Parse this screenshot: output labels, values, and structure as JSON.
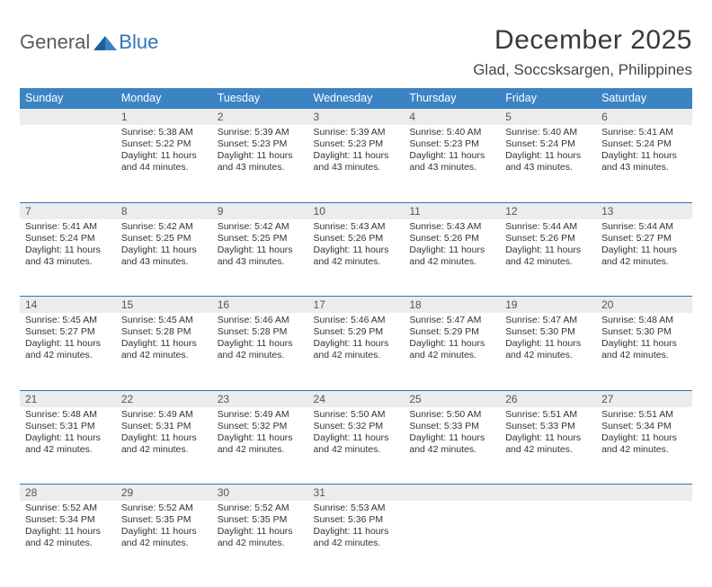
{
  "brand": {
    "part1": "General",
    "part2": "Blue"
  },
  "title": "December 2025",
  "location": "Glad, Soccsksargen, Philippines",
  "day_headers": [
    "Sunday",
    "Monday",
    "Tuesday",
    "Wednesday",
    "Thursday",
    "Friday",
    "Saturday"
  ],
  "colors": {
    "header_bg": "#3b84c4",
    "header_text": "#ffffff",
    "row_divider": "#2f78b7",
    "daynum_bg": "#ececec",
    "body_text": "#333333",
    "title_text": "#3a3a3a"
  },
  "typography": {
    "title_fontsize": 30,
    "location_fontsize": 17,
    "header_fontsize": 12.5,
    "cell_fontsize": 10.5,
    "daynum_fontsize": 12
  },
  "weeks": [
    {
      "nums": [
        "",
        "1",
        "2",
        "3",
        "4",
        "5",
        "6"
      ],
      "cells": [
        {
          "sunrise": "",
          "sunset": "",
          "daylight": ""
        },
        {
          "sunrise": "Sunrise: 5:38 AM",
          "sunset": "Sunset: 5:22 PM",
          "daylight": "Daylight: 11 hours and 44 minutes."
        },
        {
          "sunrise": "Sunrise: 5:39 AM",
          "sunset": "Sunset: 5:23 PM",
          "daylight": "Daylight: 11 hours and 43 minutes."
        },
        {
          "sunrise": "Sunrise: 5:39 AM",
          "sunset": "Sunset: 5:23 PM",
          "daylight": "Daylight: 11 hours and 43 minutes."
        },
        {
          "sunrise": "Sunrise: 5:40 AM",
          "sunset": "Sunset: 5:23 PM",
          "daylight": "Daylight: 11 hours and 43 minutes."
        },
        {
          "sunrise": "Sunrise: 5:40 AM",
          "sunset": "Sunset: 5:24 PM",
          "daylight": "Daylight: 11 hours and 43 minutes."
        },
        {
          "sunrise": "Sunrise: 5:41 AM",
          "sunset": "Sunset: 5:24 PM",
          "daylight": "Daylight: 11 hours and 43 minutes."
        }
      ]
    },
    {
      "nums": [
        "7",
        "8",
        "9",
        "10",
        "11",
        "12",
        "13"
      ],
      "cells": [
        {
          "sunrise": "Sunrise: 5:41 AM",
          "sunset": "Sunset: 5:24 PM",
          "daylight": "Daylight: 11 hours and 43 minutes."
        },
        {
          "sunrise": "Sunrise: 5:42 AM",
          "sunset": "Sunset: 5:25 PM",
          "daylight": "Daylight: 11 hours and 43 minutes."
        },
        {
          "sunrise": "Sunrise: 5:42 AM",
          "sunset": "Sunset: 5:25 PM",
          "daylight": "Daylight: 11 hours and 43 minutes."
        },
        {
          "sunrise": "Sunrise: 5:43 AM",
          "sunset": "Sunset: 5:26 PM",
          "daylight": "Daylight: 11 hours and 42 minutes."
        },
        {
          "sunrise": "Sunrise: 5:43 AM",
          "sunset": "Sunset: 5:26 PM",
          "daylight": "Daylight: 11 hours and 42 minutes."
        },
        {
          "sunrise": "Sunrise: 5:44 AM",
          "sunset": "Sunset: 5:26 PM",
          "daylight": "Daylight: 11 hours and 42 minutes."
        },
        {
          "sunrise": "Sunrise: 5:44 AM",
          "sunset": "Sunset: 5:27 PM",
          "daylight": "Daylight: 11 hours and 42 minutes."
        }
      ]
    },
    {
      "nums": [
        "14",
        "15",
        "16",
        "17",
        "18",
        "19",
        "20"
      ],
      "cells": [
        {
          "sunrise": "Sunrise: 5:45 AM",
          "sunset": "Sunset: 5:27 PM",
          "daylight": "Daylight: 11 hours and 42 minutes."
        },
        {
          "sunrise": "Sunrise: 5:45 AM",
          "sunset": "Sunset: 5:28 PM",
          "daylight": "Daylight: 11 hours and 42 minutes."
        },
        {
          "sunrise": "Sunrise: 5:46 AM",
          "sunset": "Sunset: 5:28 PM",
          "daylight": "Daylight: 11 hours and 42 minutes."
        },
        {
          "sunrise": "Sunrise: 5:46 AM",
          "sunset": "Sunset: 5:29 PM",
          "daylight": "Daylight: 11 hours and 42 minutes."
        },
        {
          "sunrise": "Sunrise: 5:47 AM",
          "sunset": "Sunset: 5:29 PM",
          "daylight": "Daylight: 11 hours and 42 minutes."
        },
        {
          "sunrise": "Sunrise: 5:47 AM",
          "sunset": "Sunset: 5:30 PM",
          "daylight": "Daylight: 11 hours and 42 minutes."
        },
        {
          "sunrise": "Sunrise: 5:48 AM",
          "sunset": "Sunset: 5:30 PM",
          "daylight": "Daylight: 11 hours and 42 minutes."
        }
      ]
    },
    {
      "nums": [
        "21",
        "22",
        "23",
        "24",
        "25",
        "26",
        "27"
      ],
      "cells": [
        {
          "sunrise": "Sunrise: 5:48 AM",
          "sunset": "Sunset: 5:31 PM",
          "daylight": "Daylight: 11 hours and 42 minutes."
        },
        {
          "sunrise": "Sunrise: 5:49 AM",
          "sunset": "Sunset: 5:31 PM",
          "daylight": "Daylight: 11 hours and 42 minutes."
        },
        {
          "sunrise": "Sunrise: 5:49 AM",
          "sunset": "Sunset: 5:32 PM",
          "daylight": "Daylight: 11 hours and 42 minutes."
        },
        {
          "sunrise": "Sunrise: 5:50 AM",
          "sunset": "Sunset: 5:32 PM",
          "daylight": "Daylight: 11 hours and 42 minutes."
        },
        {
          "sunrise": "Sunrise: 5:50 AM",
          "sunset": "Sunset: 5:33 PM",
          "daylight": "Daylight: 11 hours and 42 minutes."
        },
        {
          "sunrise": "Sunrise: 5:51 AM",
          "sunset": "Sunset: 5:33 PM",
          "daylight": "Daylight: 11 hours and 42 minutes."
        },
        {
          "sunrise": "Sunrise: 5:51 AM",
          "sunset": "Sunset: 5:34 PM",
          "daylight": "Daylight: 11 hours and 42 minutes."
        }
      ]
    },
    {
      "nums": [
        "28",
        "29",
        "30",
        "31",
        "",
        "",
        ""
      ],
      "cells": [
        {
          "sunrise": "Sunrise: 5:52 AM",
          "sunset": "Sunset: 5:34 PM",
          "daylight": "Daylight: 11 hours and 42 minutes."
        },
        {
          "sunrise": "Sunrise: 5:52 AM",
          "sunset": "Sunset: 5:35 PM",
          "daylight": "Daylight: 11 hours and 42 minutes."
        },
        {
          "sunrise": "Sunrise: 5:52 AM",
          "sunset": "Sunset: 5:35 PM",
          "daylight": "Daylight: 11 hours and 42 minutes."
        },
        {
          "sunrise": "Sunrise: 5:53 AM",
          "sunset": "Sunset: 5:36 PM",
          "daylight": "Daylight: 11 hours and 42 minutes."
        },
        {
          "sunrise": "",
          "sunset": "",
          "daylight": ""
        },
        {
          "sunrise": "",
          "sunset": "",
          "daylight": ""
        },
        {
          "sunrise": "",
          "sunset": "",
          "daylight": ""
        }
      ]
    }
  ]
}
